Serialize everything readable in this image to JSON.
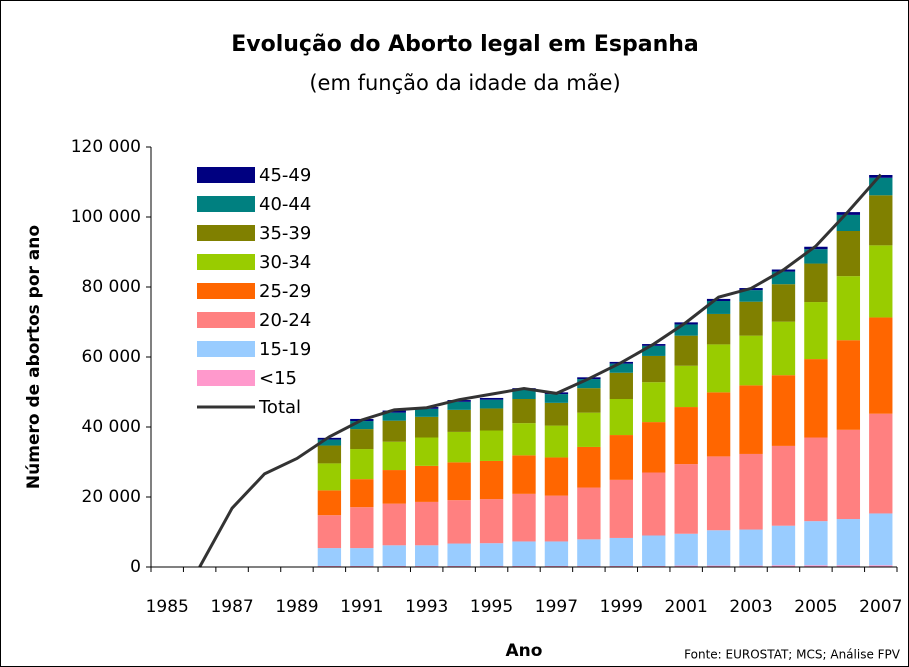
{
  "chart_data": {
    "type": "stacked_bar_line",
    "title": "Evolução do Aborto legal em Espanha",
    "subtitle": "(em função da idade da mãe)",
    "x_label": "Ano",
    "y_label": "Número de abortos por ano",
    "source": "Fonte: EUROSTAT; MCS; Análise FPV",
    "categories": [
      "1985",
      null,
      "1987",
      null,
      "1989",
      null,
      "1991",
      null,
      "1993",
      null,
      "1995",
      null,
      "1997",
      null,
      "1999",
      null,
      "2001",
      null,
      "2003",
      null,
      "2005",
      null,
      "2007"
    ],
    "ylim": [
      0,
      120000
    ],
    "yticks": [
      0,
      {
        "value": 20000,
        "label": "20 000"
      },
      {
        "value": 40000,
        "label": "40 000"
      },
      {
        "value": 60000,
        "label": "60 000"
      },
      {
        "value": 80000,
        "label": "80 000"
      },
      {
        "value": 100000,
        "label": "100 000"
      },
      {
        "value": 120000,
        "label": "120 000"
      }
    ],
    "grid": false,
    "legend": "upper left",
    "series": [
      {
        "name": "<15",
        "color": "#ff99cc",
        "values": [
          null,
          null,
          null,
          null,
          null,
          300,
          300,
          300,
          300,
          300,
          300,
          300,
          300,
          300,
          300,
          300,
          400,
          400,
          400,
          500,
          500,
          500,
          500
        ]
      },
      {
        "name": "15-19",
        "color": "#99ccff",
        "values": [
          null,
          null,
          null,
          null,
          null,
          5100,
          5100,
          5900,
          5900,
          6400,
          6500,
          7000,
          7000,
          7600,
          8000,
          8700,
          9100,
          10100,
          10300,
          11300,
          12600,
          13200,
          14800
        ]
      },
      {
        "name": "20-24",
        "color": "#ff8080",
        "values": [
          null,
          null,
          null,
          null,
          null,
          9400,
          11700,
          11900,
          12400,
          12400,
          12600,
          13600,
          13100,
          14800,
          16600,
          18000,
          19900,
          21100,
          21600,
          22800,
          23900,
          25500,
          28500
        ]
      },
      {
        "name": "25-29",
        "color": "#ff6600",
        "values": [
          null,
          null,
          null,
          null,
          null,
          7100,
          8000,
          9600,
          10300,
          10800,
          10900,
          11000,
          10900,
          11600,
          12800,
          14400,
          16300,
          18300,
          19600,
          20200,
          22400,
          25600,
          27500
        ]
      },
      {
        "name": "30-34",
        "color": "#99cc00",
        "values": [
          null,
          null,
          null,
          null,
          null,
          7700,
          8600,
          8100,
          8100,
          8700,
          8700,
          9200,
          9100,
          9800,
          10300,
          11400,
          11800,
          13700,
          14200,
          15300,
          16300,
          18300,
          20600
        ]
      },
      {
        "name": "35-39",
        "color": "#808000",
        "values": [
          null,
          null,
          null,
          null,
          null,
          5100,
          5700,
          6000,
          5900,
          6300,
          6300,
          6900,
          6500,
          7000,
          7500,
          7500,
          8600,
          8700,
          9700,
          10700,
          11000,
          12900,
          14300
        ]
      },
      {
        "name": "40-44",
        "color": "#008080",
        "values": [
          null,
          null,
          null,
          null,
          null,
          1700,
          2300,
          2300,
          2300,
          2300,
          2500,
          2600,
          2500,
          2600,
          2600,
          2900,
          3200,
          3700,
          3300,
          3600,
          4100,
          4600,
          5000
        ]
      },
      {
        "name": "45-49",
        "color": "#000080",
        "values": [
          null,
          null,
          null,
          null,
          null,
          500,
          600,
          600,
          500,
          500,
          500,
          500,
          500,
          500,
          500,
          500,
          600,
          600,
          600,
          600,
          700,
          800,
          800
        ]
      }
    ],
    "total": {
      "name": "Total",
      "color": "#333333",
      "values": [
        null,
        0,
        16800,
        26600,
        31000,
        37200,
        42000,
        44900,
        45500,
        47800,
        49400,
        51000,
        49600,
        53800,
        58400,
        63700,
        69900,
        77100,
        79600,
        84900,
        91700,
        101600,
        112100
      ]
    }
  }
}
